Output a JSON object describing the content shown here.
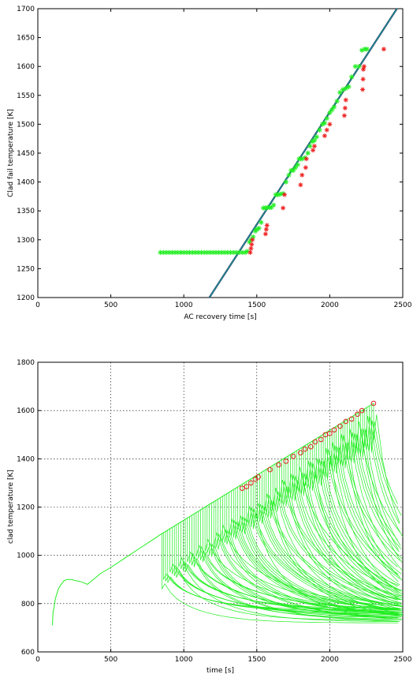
{
  "chart_data": [
    {
      "type": "scatter",
      "title": "",
      "xlabel": "AC recovery time [s]",
      "ylabel": "Clad fail temperature [K]",
      "xlim": [
        0,
        2500
      ],
      "ylim": [
        1200,
        1700
      ],
      "x_ticks": [
        "0",
        "500",
        "1000",
        "1500",
        "2000",
        "2500"
      ],
      "y_ticks": [
        "1200",
        "1250",
        "1300",
        "1350",
        "1400",
        "1450",
        "1500",
        "1550",
        "1600",
        "1650",
        "1700"
      ],
      "grid": false,
      "colors": {
        "green": "#22ee22",
        "red": "#ee2222",
        "line": "#1a3a5c",
        "line_inner": "#20b0b0"
      },
      "fit_line": {
        "x": [
          1175,
          2460
        ],
        "y": [
          1200,
          1700
        ]
      },
      "green_series": {
        "name": "",
        "x": [
          840,
          860,
          880,
          900,
          920,
          940,
          960,
          980,
          1000,
          1020,
          1040,
          1060,
          1080,
          1100,
          1120,
          1140,
          1160,
          1180,
          1200,
          1220,
          1240,
          1260,
          1280,
          1300,
          1320,
          1340,
          1360,
          1380,
          1400,
          1420,
          1435,
          1450,
          1460,
          1475,
          1490,
          1500,
          1515,
          1530,
          1545,
          1560,
          1575,
          1590,
          1600,
          1615,
          1630,
          1645,
          1660,
          1680,
          1700,
          1720,
          1735,
          1750,
          1765,
          1780,
          1790,
          1800,
          1810,
          1830,
          1850,
          1865,
          1880,
          1895,
          1910,
          1930,
          1950,
          1965,
          1980,
          2000,
          2015,
          2030,
          2050,
          2070,
          2090,
          2110,
          2130,
          2150,
          2175,
          2200,
          2220,
          2240,
          2255
        ],
        "y": [
          1278,
          1278,
          1278,
          1278,
          1278,
          1278,
          1278,
          1278,
          1278,
          1278,
          1278,
          1278,
          1278,
          1278,
          1278,
          1278,
          1278,
          1278,
          1278,
          1278,
          1278,
          1278,
          1278,
          1278,
          1278,
          1278,
          1278,
          1278,
          1278,
          1278,
          1280,
          1296,
          1300,
          1305,
          1315,
          1318,
          1320,
          1330,
          1355,
          1355,
          1356,
          1356,
          1356,
          1360,
          1378,
          1378,
          1379,
          1380,
          1400,
          1412,
          1420,
          1420,
          1425,
          1430,
          1440,
          1440,
          1440,
          1442,
          1450,
          1462,
          1470,
          1472,
          1478,
          1490,
          1500,
          1502,
          1510,
          1520,
          1525,
          1530,
          1540,
          1555,
          1560,
          1562,
          1565,
          1582,
          1600,
          1600,
          1628,
          1630,
          1630
        ]
      },
      "red_series": {
        "name": "",
        "x": [
          1455,
          1460,
          1465,
          1470,
          1560,
          1565,
          1570,
          1680,
          1690,
          1800,
          1810,
          1835,
          1840,
          1885,
          1895,
          1965,
          1980,
          2000,
          2100,
          2105,
          2110,
          2225,
          2228,
          2230,
          2235,
          2370
        ],
        "y": [
          1278,
          1285,
          1292,
          1300,
          1310,
          1318,
          1325,
          1355,
          1378,
          1395,
          1412,
          1425,
          1440,
          1455,
          1462,
          1480,
          1490,
          1500,
          1515,
          1528,
          1542,
          1560,
          1578,
          1595,
          1600,
          1630
        ]
      }
    },
    {
      "type": "line",
      "title": "",
      "xlabel": "time [s]",
      "ylabel": "clad temperature [K]",
      "xlim": [
        0,
        2500
      ],
      "ylim": [
        600,
        1800
      ],
      "x_ticks": [
        "0",
        "500",
        "1000",
        "1500",
        "2000",
        "2500"
      ],
      "y_ticks": [
        "600",
        "800",
        "1000",
        "1200",
        "1400",
        "1600",
        "1800"
      ],
      "grid": true,
      "colors": {
        "trace": "#22ee22",
        "marker": "#e02020"
      },
      "heatup_curve": {
        "t": [
          100,
          105,
          110,
          120,
          140,
          160,
          180,
          200,
          230,
          260,
          300,
          340,
          380,
          430,
          500,
          600,
          700,
          800,
          850
        ],
        "T": [
          710,
          770,
          780,
          820,
          860,
          880,
          895,
          900,
          900,
          895,
          890,
          880,
          900,
          925,
          950,
          990,
          1030,
          1070,
          1090
        ]
      },
      "recovery_times": [
        850,
        860,
        875,
        890,
        905,
        920,
        935,
        950,
        965,
        980,
        995,
        1010,
        1025,
        1040,
        1055,
        1070,
        1085,
        1100,
        1115,
        1130,
        1145,
        1160,
        1175,
        1190,
        1205,
        1220,
        1235,
        1250,
        1265,
        1280,
        1295,
        1310,
        1325,
        1340,
        1355,
        1370,
        1385,
        1400,
        1415,
        1430,
        1445,
        1460,
        1475,
        1490,
        1505,
        1520,
        1535,
        1550,
        1565,
        1580,
        1595,
        1610,
        1625,
        1640,
        1655,
        1670,
        1685,
        1700,
        1715,
        1730,
        1745,
        1760,
        1775,
        1790,
        1805,
        1820,
        1835,
        1850,
        1865,
        1880,
        1895,
        1910,
        1925,
        1940,
        1955,
        1970,
        1985,
        2000,
        2015,
        2030,
        2045,
        2060,
        2075,
        2090,
        2105,
        2120,
        2135,
        2150,
        2165,
        2180,
        2195,
        2210,
        2225,
        2240,
        2255,
        2270,
        2285,
        2300
      ],
      "cladding_failure_points": {
        "name": "",
        "t": [
          1400,
          1430,
          1460,
          1490,
          1510,
          1590,
          1650,
          1700,
          1750,
          1800,
          1830,
          1870,
          1900,
          1940,
          1970,
          2000,
          2030,
          2070,
          2110,
          2150,
          2190,
          2220,
          2300
        ],
        "T": [
          1278,
          1285,
          1300,
          1315,
          1325,
          1355,
          1375,
          1390,
          1410,
          1425,
          1440,
          1450,
          1470,
          1480,
          1500,
          1505,
          1520,
          1535,
          1555,
          1565,
          1585,
          1600,
          1630
        ]
      }
    }
  ]
}
